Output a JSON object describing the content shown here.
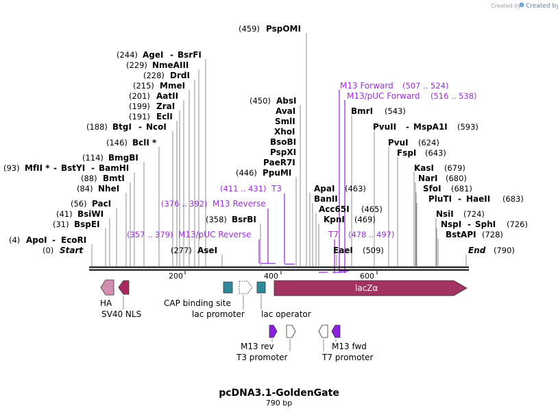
{
  "watermark": "Created by SnapGene",
  "sequence": {
    "name": "pcDNA3.1-GoldenGate",
    "length_label": "790 bp",
    "start_label": "Start",
    "start_pos": "(0)",
    "end_label": "End",
    "end_pos": "(790)",
    "ticks": [
      "200",
      "400",
      "600"
    ]
  },
  "sites": [
    {
      "pos": "(459)",
      "name": "PspOMI"
    },
    {
      "pos": "(244)",
      "name": "AgeI",
      "extra": "BsrFI"
    },
    {
      "pos": "(229)",
      "name": "NmeAIII"
    },
    {
      "pos": "(228)",
      "name": "DrdI"
    },
    {
      "pos": "(215)",
      "name": "MmeI"
    },
    {
      "pos": "(201)",
      "name": "AatII"
    },
    {
      "pos": "(199)",
      "name": "ZraI"
    },
    {
      "pos": "(191)",
      "name": "EclI"
    },
    {
      "pos": "(188)",
      "name": "BtgI",
      "extra": "NcoI"
    },
    {
      "pos": "(146)",
      "name": "BclI *"
    },
    {
      "pos": "(114)",
      "name": "BmgBI"
    },
    {
      "pos": "(93)",
      "name": "MfII *",
      "extra": "BstYI",
      "extra2": "BamHI"
    },
    {
      "pos": "(88)",
      "name": "BmtI"
    },
    {
      "pos": "(84)",
      "name": "NheI"
    },
    {
      "pos": "(56)",
      "name": "PacI"
    },
    {
      "pos": "(41)",
      "name": "BsiWI"
    },
    {
      "pos": "(31)",
      "name": "BspEI"
    },
    {
      "pos": "(4)",
      "name": "ApoI",
      "extra": "EcoRI"
    },
    {
      "pos": "(277)",
      "name": "AseI"
    },
    {
      "pos": "(358)",
      "name": "BsrBI"
    },
    {
      "pos": "(450)",
      "name": "AbsI"
    },
    {
      "name": "AvaI"
    },
    {
      "name": "SmlI"
    },
    {
      "name": "XhoI"
    },
    {
      "name": "BsoBI"
    },
    {
      "name": "PspXI"
    },
    {
      "name": "PaeR7I"
    },
    {
      "pos": "(446)",
      "name": "PpuMI"
    },
    {
      "name": "ApaI"
    },
    {
      "name": "BanII",
      "pos": "(463)"
    },
    {
      "name": "Acc65I",
      "pos": "(465)"
    },
    {
      "name": "KpnI",
      "pos": "(469)"
    },
    {
      "name": "EaeI",
      "pos": "(509)"
    },
    {
      "name": "BmrI",
      "pos": "(543)"
    },
    {
      "name": "PvuII",
      "extra": "MspA1I",
      "pos": "(593)"
    },
    {
      "name": "PvuI",
      "pos": "(624)"
    },
    {
      "name": "FspI",
      "pos": "(643)"
    },
    {
      "name": "KasI",
      "pos": "(679)"
    },
    {
      "name": "NarI",
      "pos": "(680)"
    },
    {
      "name": "SfoI",
      "pos": "(681)"
    },
    {
      "name": "PluTI",
      "extra": "HaeII",
      "pos": "(683)"
    },
    {
      "name": "NsiI",
      "pos": "(724)"
    },
    {
      "name": "NspI",
      "extra": "SphI",
      "pos": "(726)"
    },
    {
      "name": "BstAPI",
      "pos": "(728)"
    }
  ],
  "primers": [
    {
      "name": "M13 Forward",
      "range": "(507 .. 524)"
    },
    {
      "name": "M13/pUC Forward",
      "range": "(516 .. 538)"
    },
    {
      "name": "T3",
      "range": "(411 .. 431)"
    },
    {
      "name": "M13 Reverse",
      "range": "(376 .. 392)"
    },
    {
      "name": "M13/pUC Reverse",
      "range": "(357 .. 379)"
    },
    {
      "name": "T7",
      "range": "(478 .. 497)"
    }
  ],
  "features": {
    "ha": "HA",
    "sv40": "SV40 NLS",
    "cap": "CAP binding site",
    "lac_promoter": "lac promoter",
    "lac_operator": "lac operator",
    "lacz": "lacZα",
    "m13rev": "M13 rev",
    "t3p": "T3 promoter",
    "t7p": "T7 promoter",
    "m13fwd": "M13 fwd"
  },
  "colors": {
    "ha": "#d38fb0",
    "sv40": "#a8295e",
    "cap": "#2e8a9a",
    "lacz": "#a33362",
    "primer": "#9b30d9",
    "primer_feature": "#8c1fe0"
  }
}
